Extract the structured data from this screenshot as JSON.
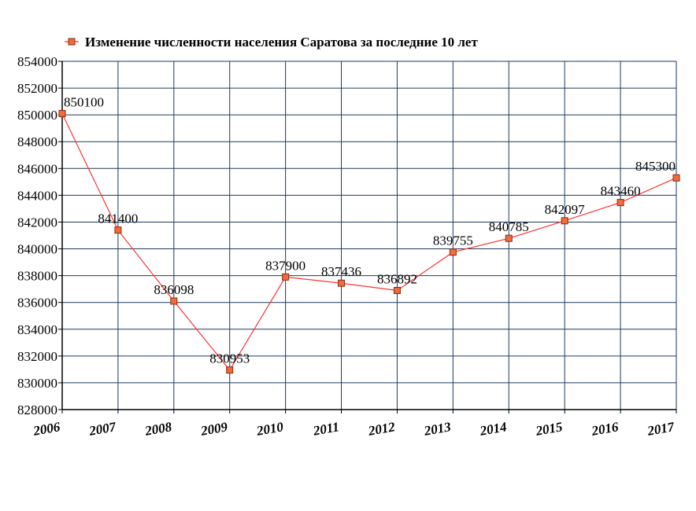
{
  "chart_data": {
    "type": "line",
    "title": "",
    "xlabel": "",
    "ylabel": "",
    "categories": [
      "2006",
      "2007",
      "2008",
      "2009",
      "2010",
      "2011",
      "2012",
      "2013",
      "2014",
      "2015",
      "2016",
      "2017"
    ],
    "series": [
      {
        "name": "Изменение численности населения Саратова за последние 10 лет",
        "values": [
          850100,
          841400,
          836098,
          830953,
          837900,
          837436,
          836892,
          839755,
          840785,
          842097,
          843460,
          845300
        ],
        "labels": [
          "850100",
          "841400",
          "836098",
          "830953",
          "837900",
          "837436",
          "836892",
          "839755",
          "840785",
          "842097",
          "843460",
          "845300"
        ]
      }
    ],
    "ylim": [
      828000,
      854000
    ],
    "yticks": [
      828000,
      830000,
      832000,
      834000,
      836000,
      838000,
      840000,
      842000,
      844000,
      846000,
      848000,
      850000,
      852000,
      854000
    ],
    "ytick_labels": [
      "828000",
      "830000",
      "832000",
      "834000",
      "836000",
      "838000",
      "840000",
      "842000",
      "844000",
      "846000",
      "848000",
      "850000",
      "852000",
      "854000"
    ],
    "grid": true,
    "legend_position": "top",
    "colors": {
      "line": "#ff3333",
      "marker_fill": "#f26b3a",
      "marker_stroke": "#8a2a10",
      "grid": "#1f3a5c",
      "axis": "#000000",
      "text": "#000000"
    }
  }
}
